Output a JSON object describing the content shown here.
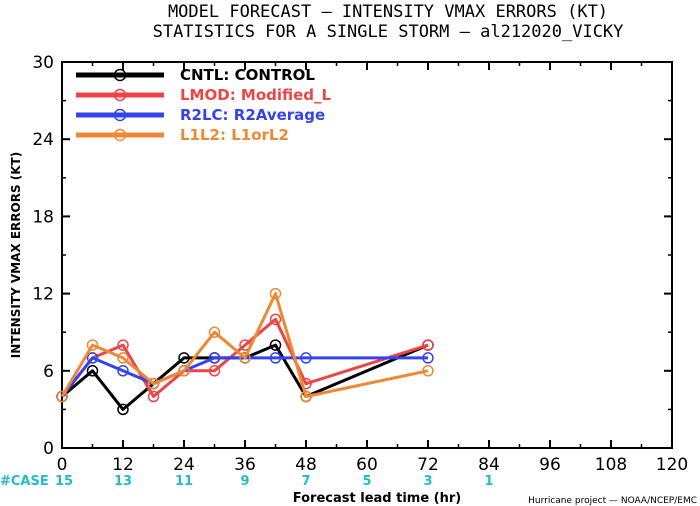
{
  "chart_data": {
    "type": "line",
    "title": "MODEL FORECAST — INTENSITY VMAX ERRORS (KT)",
    "subtitle": "STATISTICS FOR A SINGLE STORM — al212020_VICKY",
    "xlabel": "Forecast lead time (hr)",
    "ylabel": "INTENSITY VMAX ERRORS (KT)",
    "xlim": [
      0,
      120
    ],
    "ylim": [
      0,
      30
    ],
    "xticks": [
      "0",
      "12",
      "24",
      "36",
      "48",
      "60",
      "72",
      "84",
      "96",
      "108",
      "120"
    ],
    "yticks": [
      "0",
      "6",
      "12",
      "18",
      "24",
      "30"
    ],
    "grid": false,
    "legend_position": "top-left",
    "series": [
      {
        "name": "CNTL:",
        "desc": "CONTROL",
        "color": "#000000",
        "x": [
          0,
          6,
          12,
          18,
          24,
          30,
          36,
          42,
          48,
          72
        ],
        "y": [
          4,
          6,
          3,
          5,
          7,
          7,
          7,
          8,
          4,
          8
        ]
      },
      {
        "name": "LMOD:",
        "desc": "Modified_L",
        "color": "#ee4444",
        "x": [
          0,
          6,
          12,
          18,
          24,
          30,
          36,
          42,
          48,
          72
        ],
        "y": [
          4,
          7,
          8,
          4,
          6,
          6,
          8,
          10,
          5,
          8
        ]
      },
      {
        "name": "R2LC:",
        "desc": "R2Average",
        "color": "#3344ee",
        "x": [
          0,
          6,
          12,
          18,
          24,
          30,
          36,
          42,
          48,
          72
        ],
        "y": [
          4,
          7,
          6,
          5,
          6,
          7,
          7,
          7,
          7,
          7
        ]
      },
      {
        "name": "L1L2:",
        "desc": "L1orL2",
        "color": "#ee8833",
        "x": [
          0,
          6,
          12,
          18,
          24,
          30,
          36,
          42,
          48,
          72
        ],
        "y": [
          4,
          8,
          7,
          5,
          6,
          9,
          7,
          12,
          4,
          6
        ]
      }
    ],
    "case_label": "#CASE",
    "case_color": "#22bbcc",
    "cases": [
      {
        "x": 0,
        "n": "15"
      },
      {
        "x": 12,
        "n": "13"
      },
      {
        "x": 24,
        "n": "11"
      },
      {
        "x": 36,
        "n": "9"
      },
      {
        "x": 48,
        "n": "7"
      },
      {
        "x": 60,
        "n": "5"
      },
      {
        "x": 72,
        "n": "3"
      },
      {
        "x": 84,
        "n": "1"
      }
    ]
  },
  "footer": {
    "credit": "Hurricane project — NOAA/NCEP/EMC"
  }
}
